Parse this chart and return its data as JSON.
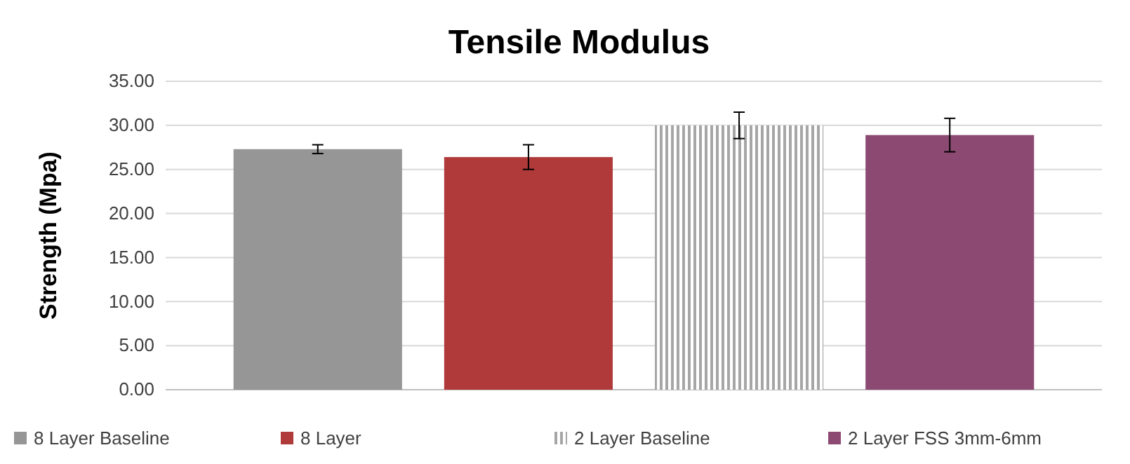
{
  "chart_data": {
    "type": "bar",
    "title": "Tensile Modulus",
    "ylabel": "Strength (Mpa)",
    "categories": [
      null
    ],
    "series": [
      {
        "name": "8 Layer Baseline",
        "color": "#969696",
        "values": [
          27.3
        ],
        "errors": [
          0.5
        ]
      },
      {
        "name": "8 Layer",
        "color": "#b03a3a",
        "values": [
          26.4
        ],
        "errors": [
          1.4
        ]
      },
      {
        "name": "2 Layer Baseline",
        "color": "#a6a6a6",
        "values": [
          30.0
        ],
        "errors": [
          1.5
        ]
      },
      {
        "name": "2 Layer FSS 3mm-6mm",
        "color": "#8c4a72",
        "values": [
          28.9
        ],
        "errors": [
          1.9
        ]
      }
    ],
    "ylim": [
      0,
      35
    ],
    "yticks": [
      {
        "value": 0,
        "label": "0.00"
      },
      {
        "value": 5,
        "label": "5.00"
      },
      {
        "value": 10,
        "label": "10.00"
      },
      {
        "value": 15,
        "label": "15.00"
      },
      {
        "value": 20,
        "label": "20.00"
      },
      {
        "value": 25,
        "label": "25.00"
      },
      {
        "value": 30,
        "label": "30.00"
      },
      {
        "value": 35,
        "label": "35.00"
      }
    ],
    "grid": "y",
    "legend": "bottom",
    "tick_labels": "y"
  }
}
